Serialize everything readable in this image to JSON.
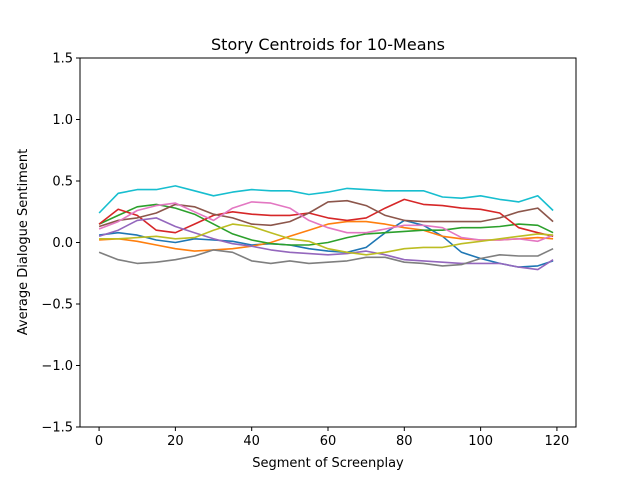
{
  "chart_data": {
    "type": "line",
    "title": "Story Centroids for 10-Means",
    "xlabel": "Segment of Screenplay",
    "ylabel": "Average Dialogue Sentiment",
    "xlim": [
      -5,
      125
    ],
    "ylim": [
      -1.5,
      1.5
    ],
    "xticks": [
      "0",
      "20",
      "40",
      "60",
      "80",
      "100",
      "120"
    ],
    "yticks": [
      "−1.5",
      "−1.0",
      "−0.5",
      "0.0",
      "0.5",
      "1.0",
      "1.5"
    ],
    "grid": false,
    "series": [
      {
        "color": "#1f77b4",
        "points": [
          [
            0,
            0.06
          ],
          [
            5,
            0.08
          ],
          [
            10,
            0.06
          ],
          [
            15,
            0.02
          ],
          [
            20,
            0.0
          ],
          [
            25,
            0.03
          ],
          [
            30,
            0.02
          ],
          [
            35,
            0.01
          ],
          [
            40,
            -0.02
          ],
          [
            45,
            -0.01
          ],
          [
            50,
            -0.02
          ],
          [
            55,
            -0.05
          ],
          [
            60,
            -0.07
          ],
          [
            65,
            -0.08
          ],
          [
            70,
            -0.04
          ],
          [
            75,
            0.08
          ],
          [
            80,
            0.18
          ],
          [
            85,
            0.14
          ],
          [
            90,
            0.05
          ],
          [
            95,
            -0.08
          ],
          [
            100,
            -0.13
          ],
          [
            105,
            -0.17
          ],
          [
            110,
            -0.2
          ],
          [
            115,
            -0.19
          ],
          [
            119,
            -0.15
          ]
        ]
      },
      {
        "color": "#ff7f0e",
        "points": [
          [
            0,
            0.02
          ],
          [
            5,
            0.03
          ],
          [
            10,
            0.01
          ],
          [
            15,
            -0.02
          ],
          [
            20,
            -0.05
          ],
          [
            25,
            -0.07
          ],
          [
            30,
            -0.06
          ],
          [
            35,
            -0.05
          ],
          [
            40,
            -0.03
          ],
          [
            45,
            0.0
          ],
          [
            50,
            0.05
          ],
          [
            55,
            0.1
          ],
          [
            60,
            0.15
          ],
          [
            65,
            0.17
          ],
          [
            70,
            0.17
          ],
          [
            75,
            0.15
          ],
          [
            80,
            0.12
          ],
          [
            85,
            0.1
          ],
          [
            90,
            0.05
          ],
          [
            95,
            0.03
          ],
          [
            100,
            0.02
          ],
          [
            105,
            0.02
          ],
          [
            110,
            0.03
          ],
          [
            115,
            0.04
          ],
          [
            119,
            0.03
          ]
        ]
      },
      {
        "color": "#2ca02c",
        "points": [
          [
            0,
            0.15
          ],
          [
            5,
            0.22
          ],
          [
            10,
            0.29
          ],
          [
            15,
            0.31
          ],
          [
            20,
            0.28
          ],
          [
            25,
            0.23
          ],
          [
            30,
            0.15
          ],
          [
            35,
            0.07
          ],
          [
            40,
            0.02
          ],
          [
            45,
            -0.01
          ],
          [
            50,
            -0.02
          ],
          [
            55,
            -0.02
          ],
          [
            60,
            0.0
          ],
          [
            65,
            0.04
          ],
          [
            70,
            0.07
          ],
          [
            75,
            0.08
          ],
          [
            80,
            0.09
          ],
          [
            85,
            0.1
          ],
          [
            90,
            0.1
          ],
          [
            95,
            0.12
          ],
          [
            100,
            0.12
          ],
          [
            105,
            0.13
          ],
          [
            110,
            0.15
          ],
          [
            115,
            0.14
          ],
          [
            119,
            0.08
          ]
        ]
      },
      {
        "color": "#d62728",
        "points": [
          [
            0,
            0.15
          ],
          [
            5,
            0.27
          ],
          [
            10,
            0.22
          ],
          [
            15,
            0.1
          ],
          [
            20,
            0.08
          ],
          [
            25,
            0.15
          ],
          [
            30,
            0.22
          ],
          [
            35,
            0.25
          ],
          [
            40,
            0.23
          ],
          [
            45,
            0.22
          ],
          [
            50,
            0.22
          ],
          [
            55,
            0.24
          ],
          [
            60,
            0.2
          ],
          [
            65,
            0.18
          ],
          [
            70,
            0.2
          ],
          [
            75,
            0.28
          ],
          [
            80,
            0.35
          ],
          [
            85,
            0.31
          ],
          [
            90,
            0.3
          ],
          [
            95,
            0.28
          ],
          [
            100,
            0.27
          ],
          [
            105,
            0.24
          ],
          [
            110,
            0.12
          ],
          [
            115,
            0.08
          ],
          [
            119,
            0.05
          ]
        ]
      },
      {
        "color": "#9467bd",
        "points": [
          [
            0,
            0.05
          ],
          [
            5,
            0.1
          ],
          [
            10,
            0.18
          ],
          [
            15,
            0.2
          ],
          [
            20,
            0.13
          ],
          [
            25,
            0.08
          ],
          [
            30,
            0.03
          ],
          [
            35,
            -0.01
          ],
          [
            40,
            -0.03
          ],
          [
            45,
            -0.06
          ],
          [
            50,
            -0.08
          ],
          [
            55,
            -0.09
          ],
          [
            60,
            -0.1
          ],
          [
            65,
            -0.09
          ],
          [
            70,
            -0.07
          ],
          [
            75,
            -0.1
          ],
          [
            80,
            -0.14
          ],
          [
            85,
            -0.15
          ],
          [
            90,
            -0.16
          ],
          [
            95,
            -0.17
          ],
          [
            100,
            -0.17
          ],
          [
            105,
            -0.17
          ],
          [
            110,
            -0.2
          ],
          [
            115,
            -0.22
          ],
          [
            119,
            -0.14
          ]
        ]
      },
      {
        "color": "#8c564b",
        "points": [
          [
            0,
            0.13
          ],
          [
            5,
            0.18
          ],
          [
            10,
            0.2
          ],
          [
            15,
            0.24
          ],
          [
            20,
            0.31
          ],
          [
            25,
            0.29
          ],
          [
            30,
            0.23
          ],
          [
            35,
            0.2
          ],
          [
            40,
            0.15
          ],
          [
            45,
            0.14
          ],
          [
            50,
            0.17
          ],
          [
            55,
            0.24
          ],
          [
            60,
            0.33
          ],
          [
            65,
            0.34
          ],
          [
            70,
            0.3
          ],
          [
            75,
            0.22
          ],
          [
            80,
            0.18
          ],
          [
            85,
            0.17
          ],
          [
            90,
            0.17
          ],
          [
            95,
            0.17
          ],
          [
            100,
            0.17
          ],
          [
            105,
            0.2
          ],
          [
            110,
            0.25
          ],
          [
            115,
            0.28
          ],
          [
            119,
            0.17
          ]
        ]
      },
      {
        "color": "#e377c2",
        "points": [
          [
            0,
            0.11
          ],
          [
            5,
            0.17
          ],
          [
            10,
            0.26
          ],
          [
            15,
            0.3
          ],
          [
            20,
            0.32
          ],
          [
            25,
            0.25
          ],
          [
            30,
            0.18
          ],
          [
            35,
            0.28
          ],
          [
            40,
            0.33
          ],
          [
            45,
            0.32
          ],
          [
            50,
            0.28
          ],
          [
            55,
            0.18
          ],
          [
            60,
            0.12
          ],
          [
            65,
            0.08
          ],
          [
            70,
            0.08
          ],
          [
            75,
            0.11
          ],
          [
            80,
            0.14
          ],
          [
            85,
            0.14
          ],
          [
            90,
            0.12
          ],
          [
            95,
            0.04
          ],
          [
            100,
            0.02
          ],
          [
            105,
            0.02
          ],
          [
            110,
            0.03
          ],
          [
            115,
            0.01
          ],
          [
            119,
            0.06
          ]
        ]
      },
      {
        "color": "#7f7f7f",
        "points": [
          [
            0,
            -0.08
          ],
          [
            5,
            -0.14
          ],
          [
            10,
            -0.17
          ],
          [
            15,
            -0.16
          ],
          [
            20,
            -0.14
          ],
          [
            25,
            -0.11
          ],
          [
            30,
            -0.06
          ],
          [
            35,
            -0.08
          ],
          [
            40,
            -0.15
          ],
          [
            45,
            -0.17
          ],
          [
            50,
            -0.15
          ],
          [
            55,
            -0.17
          ],
          [
            60,
            -0.16
          ],
          [
            65,
            -0.15
          ],
          [
            70,
            -0.12
          ],
          [
            75,
            -0.12
          ],
          [
            80,
            -0.16
          ],
          [
            85,
            -0.17
          ],
          [
            90,
            -0.19
          ],
          [
            95,
            -0.18
          ],
          [
            100,
            -0.13
          ],
          [
            105,
            -0.1
          ],
          [
            110,
            -0.11
          ],
          [
            115,
            -0.11
          ],
          [
            119,
            -0.05
          ]
        ]
      },
      {
        "color": "#bcbd22",
        "points": [
          [
            0,
            0.03
          ],
          [
            5,
            0.03
          ],
          [
            10,
            0.04
          ],
          [
            15,
            0.05
          ],
          [
            20,
            0.03
          ],
          [
            25,
            0.04
          ],
          [
            30,
            0.1
          ],
          [
            35,
            0.15
          ],
          [
            40,
            0.13
          ],
          [
            45,
            0.08
          ],
          [
            50,
            0.03
          ],
          [
            55,
            0.01
          ],
          [
            60,
            -0.05
          ],
          [
            65,
            -0.08
          ],
          [
            70,
            -0.1
          ],
          [
            75,
            -0.08
          ],
          [
            80,
            -0.05
          ],
          [
            85,
            -0.04
          ],
          [
            90,
            -0.04
          ],
          [
            95,
            -0.01
          ],
          [
            100,
            0.01
          ],
          [
            105,
            0.03
          ],
          [
            110,
            0.05
          ],
          [
            115,
            0.07
          ],
          [
            119,
            0.06
          ]
        ]
      },
      {
        "color": "#17becf",
        "points": [
          [
            0,
            0.24
          ],
          [
            5,
            0.4
          ],
          [
            10,
            0.43
          ],
          [
            15,
            0.43
          ],
          [
            20,
            0.46
          ],
          [
            25,
            0.42
          ],
          [
            30,
            0.38
          ],
          [
            35,
            0.41
          ],
          [
            40,
            0.43
          ],
          [
            45,
            0.42
          ],
          [
            50,
            0.42
          ],
          [
            55,
            0.39
          ],
          [
            60,
            0.41
          ],
          [
            65,
            0.44
          ],
          [
            70,
            0.43
          ],
          [
            75,
            0.42
          ],
          [
            80,
            0.42
          ],
          [
            85,
            0.42
          ],
          [
            90,
            0.37
          ],
          [
            95,
            0.36
          ],
          [
            100,
            0.38
          ],
          [
            105,
            0.35
          ],
          [
            110,
            0.33
          ],
          [
            115,
            0.38
          ],
          [
            119,
            0.26
          ]
        ]
      }
    ]
  }
}
